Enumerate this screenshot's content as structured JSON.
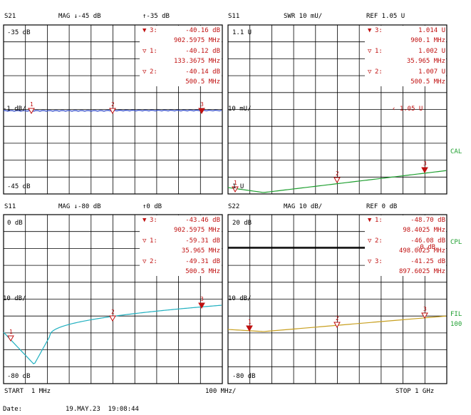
{
  "panels": [
    {
      "id": "s21",
      "header": {
        "param": "S21",
        "format": "MAG ↓-45 dB",
        "ref": "↑-35 dB"
      },
      "top_label": "-35 dB",
      "mid_label": "-1 dB/",
      "bottom_label": "-45 dB",
      "markers": [
        {
          "id": "3:",
          "value": "-40.16 dB",
          "freq": "902.5975 MHz",
          "active": true
        },
        {
          "id": "1:",
          "value": "-40.12 dB",
          "freq": "133.3675 MHz",
          "active": false
        },
        {
          "id": "2:",
          "value": "-40.14 dB",
          "freq": "500.5 MHz",
          "active": false
        }
      ],
      "trace_color": "#2b46c8",
      "marker_nums": [
        "1",
        "2",
        "3"
      ]
    },
    {
      "id": "s11_swr",
      "header": {
        "param": "S11",
        "format": "SWR 10 mU/",
        "ref": "REF 1.05 U"
      },
      "top_label": "1.1 U",
      "mid_label": "10 mU/",
      "bottom_label": "1 U",
      "ref_indicator": "‹ 1.05 U",
      "markers": [
        {
          "id": "3:",
          "value": "1.014 U",
          "freq": "900.1 MHz",
          "active": true
        },
        {
          "id": "1:",
          "value": "1.002 U",
          "freq": "35.965 MHz",
          "active": false
        },
        {
          "id": "2:",
          "value": "1.007 U",
          "freq": "500.5 MHz",
          "active": false
        }
      ],
      "trace_color": "#1f9f30",
      "marker_nums": [
        "1",
        "2",
        "3"
      ]
    },
    {
      "id": "s11_mag",
      "header": {
        "param": "S11",
        "format": "MAG ↓-80 dB",
        "ref": "↑0 dB"
      },
      "top_label": "0 dB",
      "mid_label": "10 dB/",
      "bottom_label": "-80 dB",
      "markers": [
        {
          "id": "3:",
          "value": "-43.46 dB",
          "freq": "902.5975 MHz",
          "active": true
        },
        {
          "id": "1:",
          "value": "-59.31 dB",
          "freq": "35.965 MHz",
          "active": false
        },
        {
          "id": "2:",
          "value": "-49.31 dB",
          "freq": "500.5 MHz",
          "active": false
        }
      ],
      "trace_color": "#20b0c0",
      "marker_nums": [
        "1",
        "2",
        "3"
      ]
    },
    {
      "id": "s22",
      "header": {
        "param": "S22",
        "format": "MAG 10 dB/",
        "ref": "REF 0 dB"
      },
      "top_label": "20 dB",
      "mid_label": "10 dB/",
      "bottom_label": "-80 dB",
      "markers": [
        {
          "id": "1:",
          "value": "-48.70 dB",
          "freq": "98.4025 MHz",
          "active": true
        },
        {
          "id": "2:",
          "value": "-46.08 dB",
          "freq": "498.0025 MHz",
          "active": false,
          "overlap": "-0 dB"
        },
        {
          "id": "3:",
          "value": "-41.25 dB",
          "freq": "897.6025 MHz",
          "active": false
        }
      ],
      "trace_color": "#c8a020",
      "marker_nums": [
        "1",
        "2",
        "3"
      ]
    }
  ],
  "side_labels": {
    "cal": "CAL",
    "cpl": "CPL",
    "fil": "FIL",
    "fil_value": "100"
  },
  "footer": {
    "start": "START  1 MHz",
    "span": "100 MHz/",
    "stop": "STOP 1 GHz"
  },
  "date": {
    "label": "Date:",
    "value": "19.MAY.23  19:08:44"
  }
}
